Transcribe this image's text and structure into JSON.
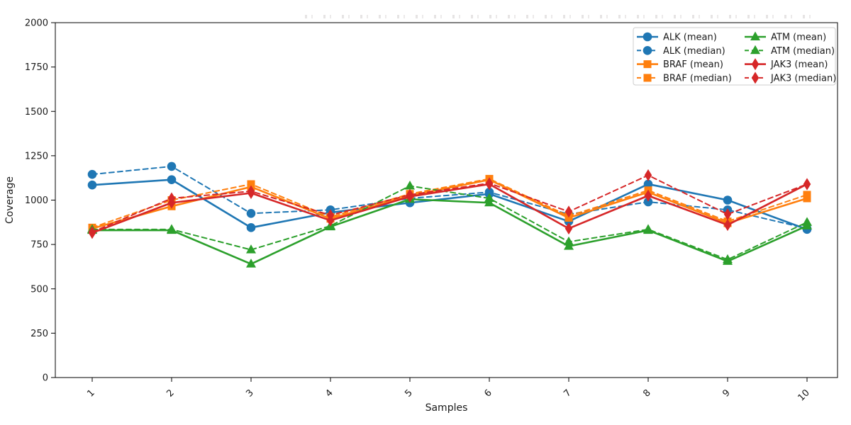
{
  "figure": {
    "xlabel": "Samples",
    "ylabel": "Coverage"
  },
  "chart_data": {
    "type": "line",
    "title": "",
    "xlabel": "Samples",
    "ylabel": "Coverage",
    "x": [
      1,
      2,
      3,
      4,
      5,
      6,
      7,
      8,
      9,
      10
    ],
    "x_tick_labels": [
      "1",
      "2",
      "3",
      "4",
      "5",
      "6",
      "7",
      "8",
      "9",
      "10"
    ],
    "y_ticks": [
      0,
      250,
      500,
      750,
      1000,
      1250,
      1500,
      1750,
      2000
    ],
    "ylim": [
      0,
      2000
    ],
    "xlim": [
      0.55,
      10.45
    ],
    "grid": false,
    "legend_position": "upper-right",
    "legend_columns": 2,
    "series": [
      {
        "name": "ALK (mean)",
        "color": "#1f77b4",
        "line": "solid",
        "marker": "circle",
        "values": [
          1085,
          1115,
          845,
          930,
          985,
          1035,
          880,
          1090,
          1000,
          835
        ]
      },
      {
        "name": "ALK (median)",
        "color": "#1f77b4",
        "line": "dashed",
        "marker": "circle",
        "values": [
          1145,
          1190,
          925,
          945,
          1010,
          1045,
          920,
          990,
          945,
          840
        ]
      },
      {
        "name": "BRAF (mean)",
        "color": "#ff7f0e",
        "line": "solid",
        "marker": "square",
        "values": [
          840,
          965,
          1075,
          895,
          1025,
          1115,
          900,
          1045,
          870,
          1010
        ]
      },
      {
        "name": "BRAF (median)",
        "color": "#ff7f0e",
        "line": "dashed",
        "marker": "square",
        "values": [
          845,
          1000,
          1090,
          905,
          1035,
          1120,
          910,
          1055,
          880,
          1030
        ]
      },
      {
        "name": "ATM (mean)",
        "color": "#2ca02c",
        "line": "solid",
        "marker": "triangle",
        "values": [
          830,
          830,
          640,
          850,
          1005,
          985,
          740,
          830,
          655,
          855
        ]
      },
      {
        "name": "ATM (median)",
        "color": "#2ca02c",
        "line": "dashed",
        "marker": "triangle",
        "values": [
          835,
          835,
          720,
          855,
          1080,
          1010,
          765,
          835,
          665,
          875
        ]
      },
      {
        "name": "JAK3 (mean)",
        "color": "#d62728",
        "line": "solid",
        "marker": "diamond",
        "values": [
          815,
          985,
          1040,
          885,
          1020,
          1090,
          840,
          1025,
          860,
          1090
        ]
      },
      {
        "name": "JAK3 (median)",
        "color": "#d62728",
        "line": "dashed",
        "marker": "diamond",
        "values": [
          820,
          1010,
          1050,
          915,
          1030,
          1095,
          935,
          1140,
          920,
          1090
        ]
      }
    ],
    "legend_column_order": [
      [
        "ALK (mean)",
        "ALK (median)",
        "BRAF (mean)",
        "BRAF (median)"
      ],
      [
        "ATM (mean)",
        "ATM (median)",
        "JAK3 (mean)",
        "JAK3 (median)"
      ]
    ]
  }
}
